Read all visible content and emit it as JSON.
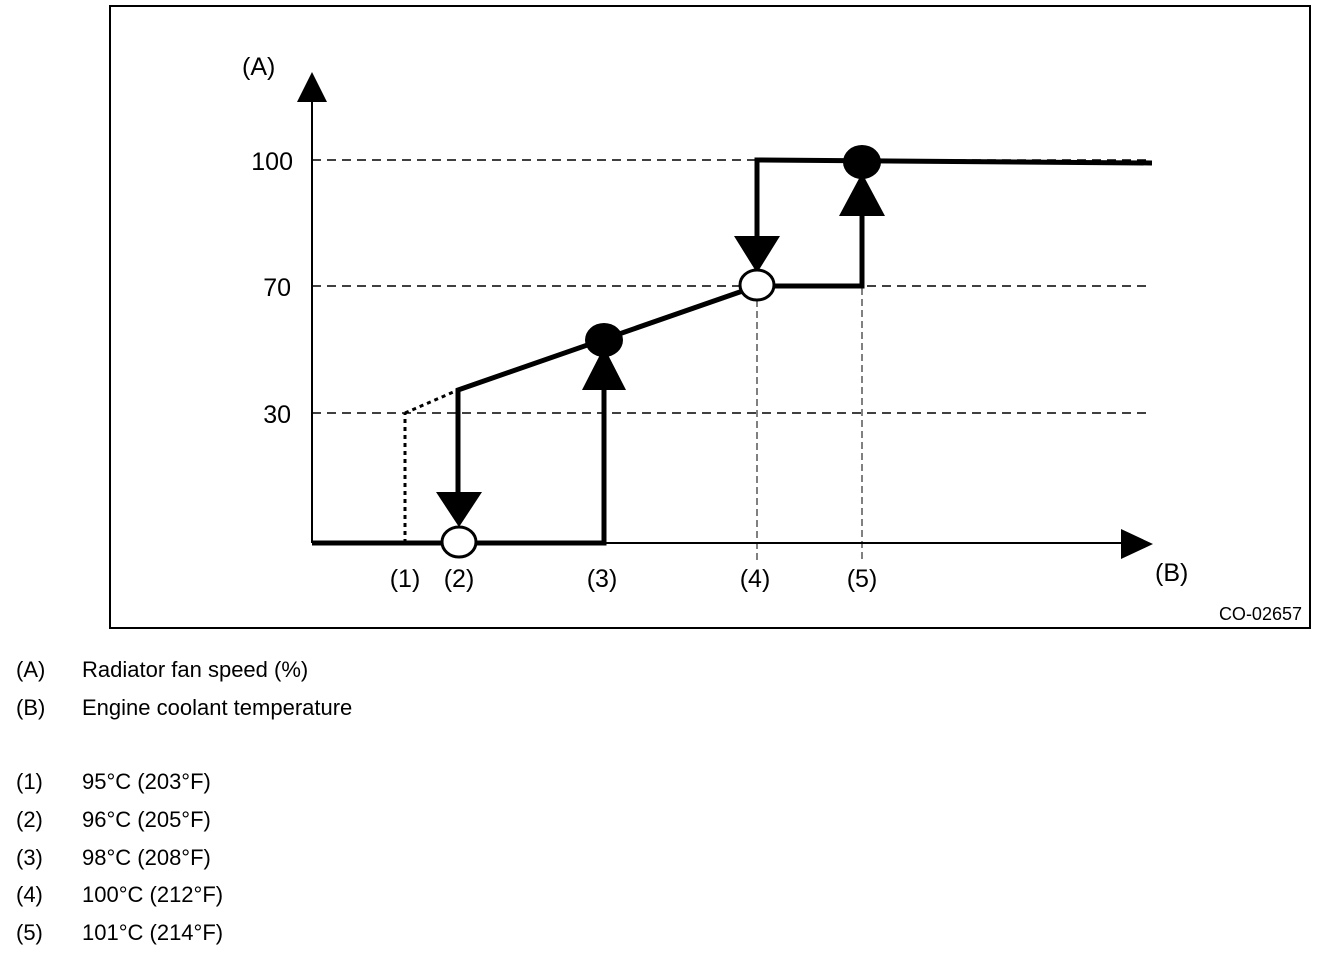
{
  "figure_code": "CO-02657",
  "axes": {
    "y_axis_label": "(A)",
    "x_axis_label": "(B)",
    "y_ticks": [
      "100",
      "70",
      "30"
    ]
  },
  "x_markers": [
    "(1)",
    "(2)",
    "(3)",
    "(4)",
    "(5)"
  ],
  "legend_axes": [
    {
      "key": "(A)",
      "text": "Radiator fan speed (%)"
    },
    {
      "key": "(B)",
      "text": "Engine coolant temperature"
    }
  ],
  "legend_points": [
    {
      "key": "(1)",
      "text": "95°C (203°F)"
    },
    {
      "key": "(2)",
      "text": "96°C (205°F)"
    },
    {
      "key": "(3)",
      "text": "98°C (208°F)"
    },
    {
      "key": "(4)",
      "text": "100°C (212°F)"
    },
    {
      "key": "(5)",
      "text": "101°C (214°F)"
    }
  ]
}
